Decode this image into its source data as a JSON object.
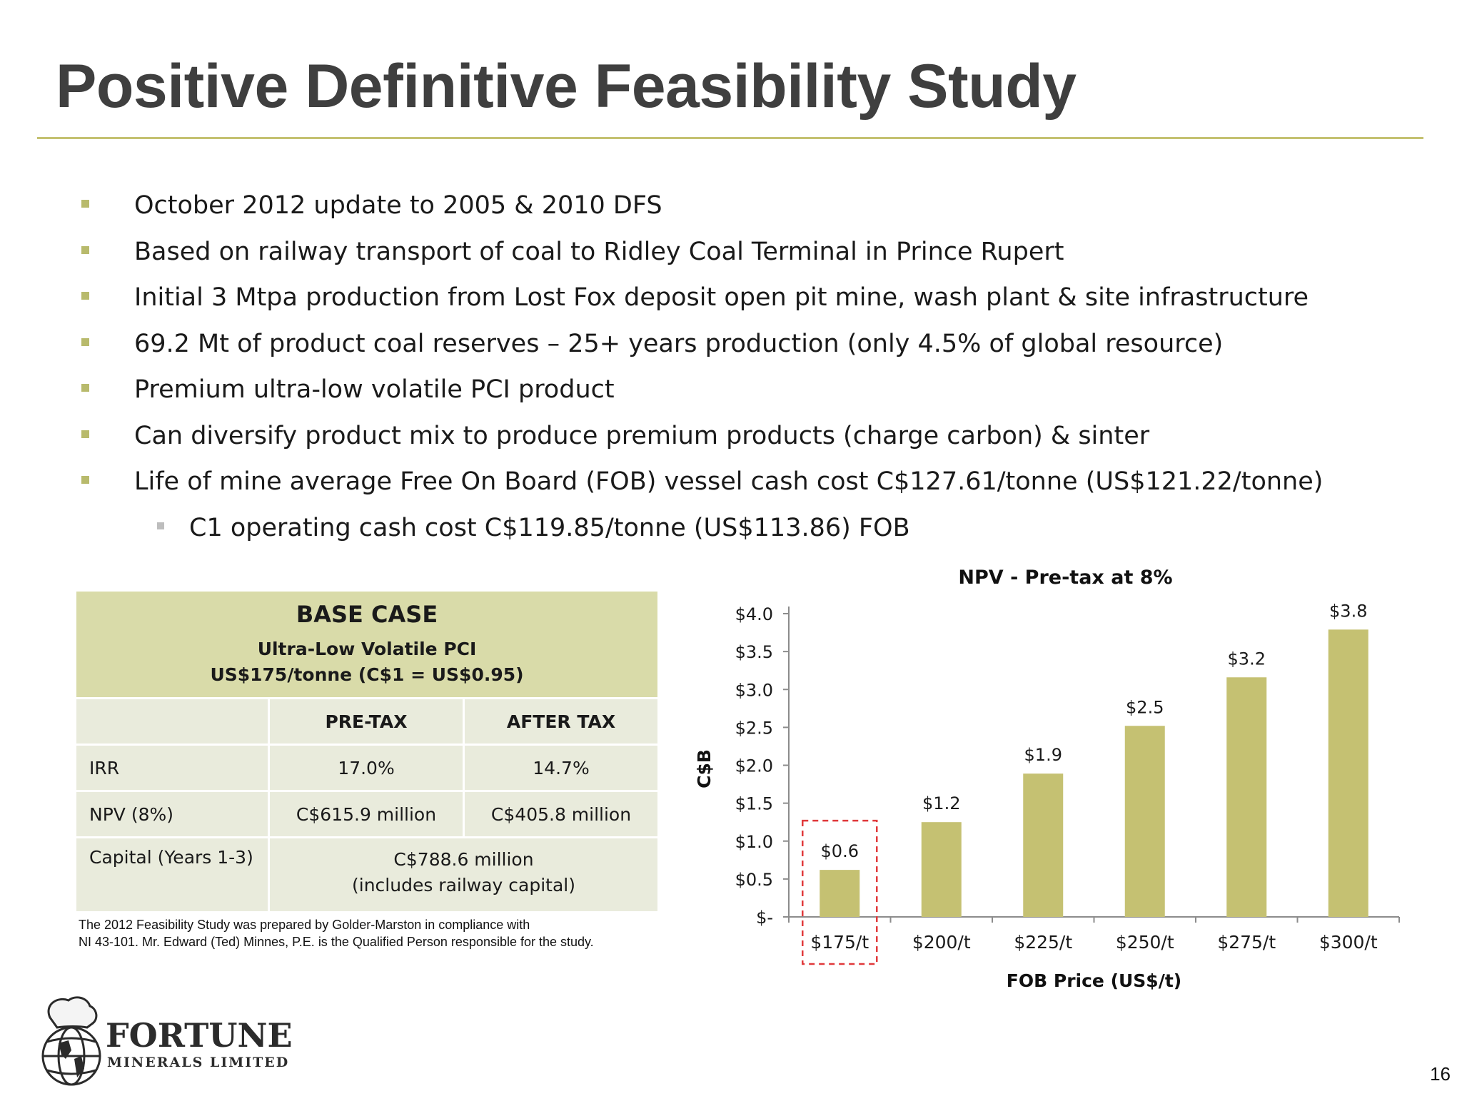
{
  "title": "Positive Definitive Feasibility Study",
  "bullets": [
    "October 2012 update to 2005 & 2010 DFS",
    "Based on railway transport of coal to Ridley Coal Terminal in Prince Rupert",
    "Initial 3 Mtpa production from Lost Fox deposit open pit mine, wash plant & site infrastructure",
    "69.2 Mt of product coal reserves – 25+ years production (only 4.5% of global resource)",
    "Premium ultra-low volatile PCI product",
    "Can diversify product mix to produce premium products (charge carbon) & sinter",
    "Life of mine average Free On Board (FOB) vessel cash cost C$127.61/tonne (US$121.22/tonne)"
  ],
  "sub_bullet": "C1 operating cash cost C$119.85/tonne (US$113.86) FOB",
  "table": {
    "heading": "BASE CASE",
    "subheading_1": "Ultra-Low Volatile PCI",
    "subheading_2": "US$175/tonne (C$1 = US$0.95)",
    "col_pretax": "PRE-TAX",
    "col_aftertax": "AFTER TAX",
    "irr_label": "IRR",
    "irr_pretax": "17.0%",
    "irr_aftertax": "14.7%",
    "npv_label": "NPV (8%)",
    "npv_pretax": "C$615.9 million",
    "npv_aftertax": "C$405.8 million",
    "capital_label": "Capital (Years 1-3)",
    "capital_value_1": "C$788.6 million",
    "capital_value_2": "(includes railway capital)"
  },
  "footnote_1": "The 2012 Feasibility Study was prepared by Golder-Marston in compliance with",
  "footnote_2": "NI 43-101.  Mr. Edward (Ted) Minnes, P.E. is the Qualified Person responsible for the study.",
  "chart_data": {
    "type": "bar",
    "title": "NPV - Pre-tax at 8%",
    "xlabel": "FOB Price (US$/t)",
    "ylabel": "C$B",
    "categories": [
      "$175/t",
      "$200/t",
      "$225/t",
      "$250/t",
      "$275/t",
      "$300/t"
    ],
    "values": [
      0.62,
      1.25,
      1.89,
      2.52,
      3.16,
      3.79
    ],
    "data_labels": [
      "$0.6",
      "$1.2",
      "$1.9",
      "$2.5",
      "$3.2",
      "$3.8"
    ],
    "ylim": [
      0,
      4.0
    ],
    "yticks": [
      0,
      0.5,
      1.0,
      1.5,
      2.0,
      2.5,
      3.0,
      3.5,
      4.0
    ],
    "ytick_labels": [
      "$-",
      "$0.5",
      "$1.0",
      "$1.5",
      "$2.0",
      "$2.5",
      "$3.0",
      "$3.5",
      "$4.0"
    ],
    "bar_color": "#c5c172",
    "highlight_category": "$175/t",
    "highlight_color": "#e0393b",
    "grid": false
  },
  "logo": {
    "name": "FORTUNE",
    "subname": "MINERALS LIMITED"
  },
  "page_number": "16"
}
